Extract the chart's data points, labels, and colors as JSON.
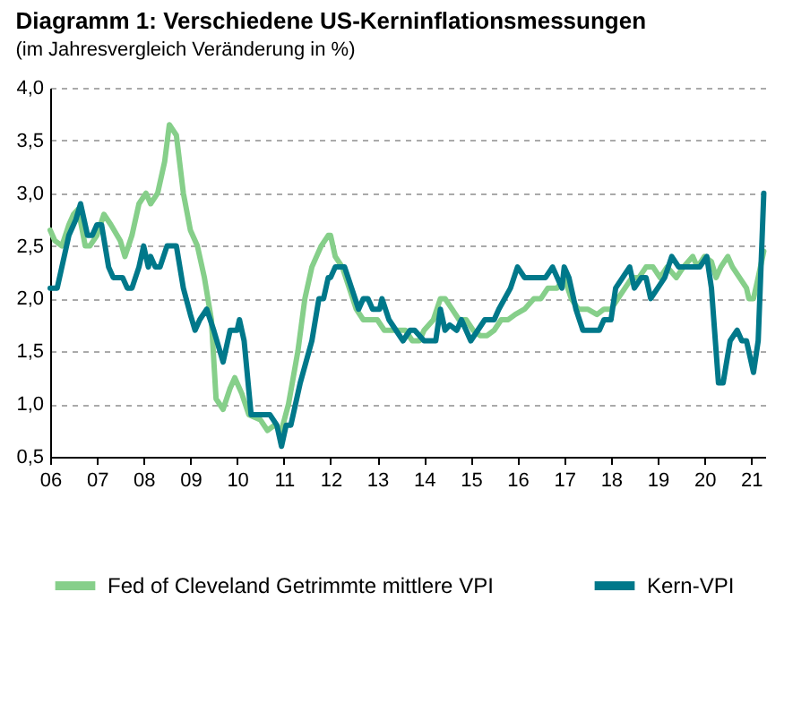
{
  "chart_data": {
    "type": "line",
    "title": "Diagramm 1: Verschiedene US-Kerninflationsmessungen",
    "subtitle": "(im Jahresvergleich Veränderung in %)",
    "xlim": [
      2006,
      2021.3
    ],
    "xticks": [
      {
        "value": 2006,
        "label": "06"
      },
      {
        "value": 2007,
        "label": "07"
      },
      {
        "value": 2008,
        "label": "08"
      },
      {
        "value": 2009,
        "label": "09"
      },
      {
        "value": 2010,
        "label": "10"
      },
      {
        "value": 2011,
        "label": "11"
      },
      {
        "value": 2012,
        "label": "12"
      },
      {
        "value": 2013,
        "label": "13"
      },
      {
        "value": 2014,
        "label": "14"
      },
      {
        "value": 2015,
        "label": "15"
      },
      {
        "value": 2016,
        "label": "16"
      },
      {
        "value": 2017,
        "label": "17"
      },
      {
        "value": 2018,
        "label": "18"
      },
      {
        "value": 2019,
        "label": "19"
      },
      {
        "value": 2020,
        "label": "20"
      },
      {
        "value": 2021,
        "label": "21"
      }
    ],
    "ylim": [
      0.5,
      4
    ],
    "yticks": [
      {
        "value": 0.5,
        "label": "0,5"
      },
      {
        "value": 1,
        "label": "1,0"
      },
      {
        "value": 1.5,
        "label": "1,5"
      },
      {
        "value": 2,
        "label": "2,0"
      },
      {
        "value": 2.5,
        "label": "2,5"
      },
      {
        "value": 3,
        "label": "3,0"
      },
      {
        "value": 3.5,
        "label": "3,5"
      },
      {
        "value": 4,
        "label": "4,0"
      }
    ],
    "grid": "y",
    "legend": "bottom",
    "line_style": "solid",
    "series": [
      {
        "name": "Fed of Cleveland Getrimmte mittlere VPI",
        "color": "#86cf8a",
        "x": [
          2006.0,
          2006.1,
          2006.25,
          2006.4,
          2006.5,
          2006.6,
          2006.75,
          2006.85,
          2007.0,
          2007.15,
          2007.3,
          2007.5,
          2007.6,
          2007.75,
          2007.9,
          2008.05,
          2008.15,
          2008.3,
          2008.45,
          2008.55,
          2008.7,
          2008.85,
          2009.0,
          2009.15,
          2009.3,
          2009.45,
          2009.55,
          2009.7,
          2009.85,
          2009.95,
          2010.1,
          2010.25,
          2010.5,
          2010.65,
          2010.8,
          2010.95,
          2011.1,
          2011.3,
          2011.45,
          2011.6,
          2011.8,
          2011.95,
          2012.0,
          2012.1,
          2012.25,
          2012.4,
          2012.55,
          2012.7,
          2012.85,
          2013.0,
          2013.15,
          2013.3,
          2013.45,
          2013.6,
          2013.75,
          2013.9,
          2014.0,
          2014.2,
          2014.35,
          2014.45,
          2014.6,
          2014.75,
          2014.9,
          2015.05,
          2015.2,
          2015.35,
          2015.5,
          2015.65,
          2015.8,
          2015.95,
          2016.15,
          2016.35,
          2016.5,
          2016.65,
          2016.85,
          2017.0,
          2017.15,
          2017.3,
          2017.5,
          2017.7,
          2017.85,
          2018.0,
          2018.15,
          2018.3,
          2018.45,
          2018.6,
          2018.75,
          2018.9,
          2019.05,
          2019.2,
          2019.4,
          2019.55,
          2019.75,
          2019.85,
          2020.0,
          2020.15,
          2020.25,
          2020.35,
          2020.5,
          2020.6,
          2020.75,
          2020.9,
          2020.95,
          2021.05,
          2021.15,
          2021.27
        ],
        "values": [
          2.65,
          2.55,
          2.5,
          2.7,
          2.8,
          2.85,
          2.5,
          2.5,
          2.6,
          2.8,
          2.7,
          2.55,
          2.4,
          2.6,
          2.9,
          3.0,
          2.9,
          3.0,
          3.3,
          3.65,
          3.55,
          3.0,
          2.65,
          2.5,
          2.2,
          1.8,
          1.05,
          0.95,
          1.15,
          1.25,
          1.1,
          0.9,
          0.85,
          0.75,
          0.8,
          0.75,
          1.0,
          1.5,
          2.0,
          2.3,
          2.5,
          2.6,
          2.6,
          2.4,
          2.3,
          2.1,
          1.9,
          1.8,
          1.8,
          1.8,
          1.7,
          1.7,
          1.7,
          1.7,
          1.6,
          1.6,
          1.7,
          1.8,
          2.0,
          2.0,
          1.9,
          1.8,
          1.8,
          1.7,
          1.65,
          1.65,
          1.7,
          1.8,
          1.8,
          1.85,
          1.9,
          2.0,
          2.0,
          2.1,
          2.1,
          2.2,
          2.0,
          1.9,
          1.9,
          1.85,
          1.9,
          1.9,
          2.0,
          2.1,
          2.2,
          2.2,
          2.3,
          2.3,
          2.2,
          2.3,
          2.2,
          2.3,
          2.4,
          2.3,
          2.4,
          2.35,
          2.2,
          2.3,
          2.4,
          2.3,
          2.2,
          2.1,
          2.0,
          2.0,
          2.2,
          2.45
        ]
      },
      {
        "name": "Kern-VPI",
        "color": "#00788a",
        "x": [
          2006.0,
          2006.15,
          2006.3,
          2006.4,
          2006.55,
          2006.65,
          2006.8,
          2006.9,
          2007.0,
          2007.1,
          2007.25,
          2007.35,
          2007.55,
          2007.65,
          2007.75,
          2007.9,
          2008.0,
          2008.1,
          2008.15,
          2008.25,
          2008.35,
          2008.5,
          2008.7,
          2008.85,
          2009.0,
          2009.1,
          2009.2,
          2009.35,
          2009.5,
          2009.7,
          2009.85,
          2010.0,
          2010.05,
          2010.15,
          2010.3,
          2010.5,
          2010.7,
          2010.85,
          2010.95,
          2011.05,
          2011.15,
          2011.35,
          2011.6,
          2011.75,
          2011.85,
          2011.95,
          2012.0,
          2012.1,
          2012.2,
          2012.3,
          2012.45,
          2012.6,
          2012.7,
          2012.8,
          2012.9,
          2013.05,
          2013.1,
          2013.25,
          2013.4,
          2013.55,
          2013.7,
          2013.8,
          2014.0,
          2014.1,
          2014.25,
          2014.35,
          2014.45,
          2014.55,
          2014.7,
          2014.8,
          2014.9,
          2015.0,
          2015.15,
          2015.3,
          2015.4,
          2015.5,
          2015.6,
          2015.85,
          2016.0,
          2016.15,
          2016.3,
          2016.5,
          2016.6,
          2016.75,
          2016.85,
          2016.95,
          2017.0,
          2017.1,
          2017.25,
          2017.4,
          2017.55,
          2017.75,
          2017.85,
          2018.0,
          2018.1,
          2018.25,
          2018.4,
          2018.5,
          2018.65,
          2018.75,
          2018.85,
          2019.0,
          2019.15,
          2019.3,
          2019.45,
          2019.6,
          2019.75,
          2019.9,
          2020.05,
          2020.15,
          2020.3,
          2020.4,
          2020.55,
          2020.7,
          2020.8,
          2020.9,
          2021.0,
          2021.05,
          2021.15,
          2021.27
        ],
        "values": [
          2.1,
          2.1,
          2.4,
          2.6,
          2.75,
          2.9,
          2.6,
          2.6,
          2.7,
          2.7,
          2.3,
          2.2,
          2.2,
          2.1,
          2.1,
          2.3,
          2.5,
          2.3,
          2.4,
          2.3,
          2.3,
          2.5,
          2.5,
          2.1,
          1.85,
          1.7,
          1.8,
          1.9,
          1.7,
          1.4,
          1.7,
          1.7,
          1.8,
          1.6,
          0.9,
          0.9,
          0.9,
          0.8,
          0.6,
          0.8,
          0.8,
          1.2,
          1.6,
          2.0,
          2.0,
          2.2,
          2.2,
          2.3,
          2.3,
          2.3,
          2.1,
          1.9,
          2.0,
          2.0,
          1.9,
          1.9,
          2.0,
          1.8,
          1.7,
          1.6,
          1.7,
          1.7,
          1.6,
          1.6,
          1.6,
          1.9,
          1.7,
          1.75,
          1.7,
          1.8,
          1.7,
          1.6,
          1.7,
          1.8,
          1.8,
          1.8,
          1.9,
          2.1,
          2.3,
          2.2,
          2.2,
          2.2,
          2.2,
          2.3,
          2.2,
          2.1,
          2.3,
          2.2,
          1.9,
          1.7,
          1.7,
          1.7,
          1.8,
          1.8,
          2.1,
          2.2,
          2.3,
          2.1,
          2.2,
          2.2,
          2.0,
          2.1,
          2.2,
          2.4,
          2.3,
          2.3,
          2.3,
          2.3,
          2.4,
          2.1,
          1.2,
          1.2,
          1.6,
          1.7,
          1.6,
          1.6,
          1.4,
          1.3,
          1.6,
          3.0
        ]
      }
    ]
  }
}
